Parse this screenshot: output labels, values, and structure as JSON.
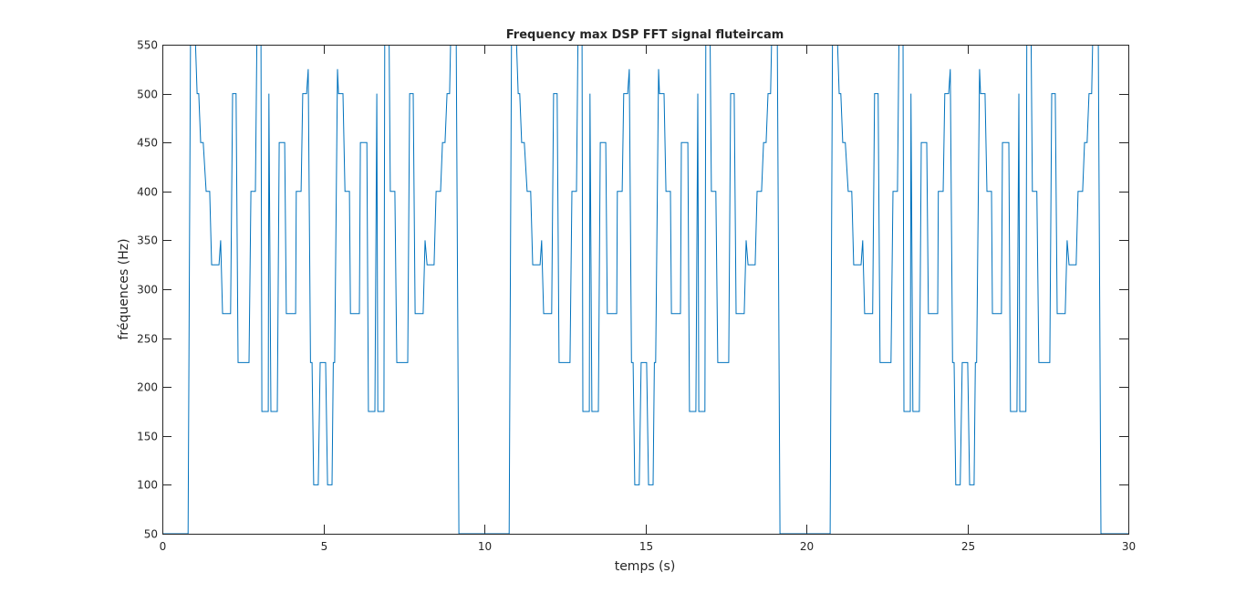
{
  "chart_data": {
    "type": "line",
    "title": "Frequency max DSP FFT signal fluteircam",
    "xlabel": "temps (s)",
    "ylabel": "fréquences (Hz)",
    "xlim": [
      0,
      30
    ],
    "ylim": [
      50,
      550
    ],
    "xticks": [
      0,
      5,
      10,
      15,
      20,
      25,
      30
    ],
    "yticks": [
      50,
      100,
      150,
      200,
      250,
      300,
      350,
      400,
      450,
      500,
      550
    ],
    "grid": false,
    "color": "#0072BD",
    "series": [
      {
        "points": [
          [
            0,
            50
          ],
          [
            0.8,
            50
          ],
          [
            0.88,
            600
          ],
          [
            0.98,
            600
          ],
          [
            1.08,
            500
          ],
          [
            1.13,
            500
          ],
          [
            1.19,
            450
          ],
          [
            1.27,
            450
          ],
          [
            1.36,
            400
          ],
          [
            1.47,
            400
          ],
          [
            1.53,
            325
          ],
          [
            1.76,
            325
          ],
          [
            1.81,
            350
          ],
          [
            1.87,
            275
          ],
          [
            2.12,
            275
          ],
          [
            2.18,
            500
          ],
          [
            2.29,
            500
          ],
          [
            2.35,
            225
          ],
          [
            2.69,
            225
          ],
          [
            2.75,
            400
          ],
          [
            2.89,
            400
          ],
          [
            2.95,
            600
          ],
          [
            3.06,
            600
          ],
          [
            3.09,
            175
          ],
          [
            3.29,
            175
          ],
          [
            3.31,
            500
          ],
          [
            3.37,
            175
          ],
          [
            3.57,
            175
          ],
          [
            3.63,
            450
          ],
          [
            3.8,
            450
          ],
          [
            3.85,
            275
          ],
          [
            4.14,
            275
          ],
          [
            4.16,
            400
          ],
          [
            4.31,
            400
          ],
          [
            4.36,
            500
          ],
          [
            4.48,
            500
          ],
          [
            4.53,
            525
          ],
          [
            4.6,
            225
          ],
          [
            4.65,
            225
          ],
          [
            4.7,
            100
          ],
          [
            4.84,
            100
          ],
          [
            4.9,
            225
          ],
          [
            5.07,
            225
          ],
          [
            5.13,
            100
          ],
          [
            5.27,
            100
          ],
          [
            5.31,
            225
          ],
          [
            5.35,
            225
          ],
          [
            5.44,
            525
          ],
          [
            5.47,
            500
          ],
          [
            5.61,
            500
          ],
          [
            5.67,
            400
          ],
          [
            5.81,
            400
          ],
          [
            5.84,
            275
          ],
          [
            6.12,
            275
          ],
          [
            6.15,
            450
          ],
          [
            6.35,
            450
          ],
          [
            6.4,
            175
          ],
          [
            6.6,
            175
          ],
          [
            6.66,
            500
          ],
          [
            6.69,
            175
          ],
          [
            6.88,
            175
          ],
          [
            6.91,
            600
          ],
          [
            7.03,
            600
          ],
          [
            7.08,
            400
          ],
          [
            7.22,
            400
          ],
          [
            7.28,
            225
          ],
          [
            7.62,
            225
          ],
          [
            7.68,
            500
          ],
          [
            7.79,
            500
          ],
          [
            7.85,
            275
          ],
          [
            8.1,
            275
          ],
          [
            8.16,
            350
          ],
          [
            8.22,
            325
          ],
          [
            8.44,
            325
          ],
          [
            8.5,
            400
          ],
          [
            8.64,
            400
          ],
          [
            8.7,
            450
          ],
          [
            8.78,
            450
          ],
          [
            8.84,
            500
          ],
          [
            8.92,
            500
          ],
          [
            8.98,
            600
          ],
          [
            9.12,
            600
          ],
          [
            9.21,
            50
          ],
          [
            10.77,
            50
          ],
          [
            10.85,
            600
          ],
          [
            10.95,
            600
          ],
          [
            11.05,
            500
          ],
          [
            11.1,
            500
          ],
          [
            11.16,
            450
          ],
          [
            11.24,
            450
          ],
          [
            11.33,
            400
          ],
          [
            11.44,
            400
          ],
          [
            11.5,
            325
          ],
          [
            11.73,
            325
          ],
          [
            11.78,
            350
          ],
          [
            11.84,
            275
          ],
          [
            12.09,
            275
          ],
          [
            12.15,
            500
          ],
          [
            12.26,
            500
          ],
          [
            12.32,
            225
          ],
          [
            12.66,
            225
          ],
          [
            12.72,
            400
          ],
          [
            12.86,
            400
          ],
          [
            12.92,
            600
          ],
          [
            13.03,
            600
          ],
          [
            13.06,
            175
          ],
          [
            13.26,
            175
          ],
          [
            13.28,
            500
          ],
          [
            13.34,
            175
          ],
          [
            13.54,
            175
          ],
          [
            13.6,
            450
          ],
          [
            13.77,
            450
          ],
          [
            13.82,
            275
          ],
          [
            14.11,
            275
          ],
          [
            14.13,
            400
          ],
          [
            14.28,
            400
          ],
          [
            14.33,
            500
          ],
          [
            14.45,
            500
          ],
          [
            14.5,
            525
          ],
          [
            14.57,
            225
          ],
          [
            14.62,
            225
          ],
          [
            14.67,
            100
          ],
          [
            14.81,
            100
          ],
          [
            14.87,
            225
          ],
          [
            15.04,
            225
          ],
          [
            15.1,
            100
          ],
          [
            15.24,
            100
          ],
          [
            15.28,
            225
          ],
          [
            15.32,
            225
          ],
          [
            15.41,
            525
          ],
          [
            15.44,
            500
          ],
          [
            15.58,
            500
          ],
          [
            15.64,
            400
          ],
          [
            15.78,
            400
          ],
          [
            15.81,
            275
          ],
          [
            16.09,
            275
          ],
          [
            16.12,
            450
          ],
          [
            16.32,
            450
          ],
          [
            16.37,
            175
          ],
          [
            16.57,
            175
          ],
          [
            16.63,
            500
          ],
          [
            16.66,
            175
          ],
          [
            16.85,
            175
          ],
          [
            16.88,
            600
          ],
          [
            17.0,
            600
          ],
          [
            17.05,
            400
          ],
          [
            17.19,
            400
          ],
          [
            17.25,
            225
          ],
          [
            17.59,
            225
          ],
          [
            17.65,
            500
          ],
          [
            17.76,
            500
          ],
          [
            17.82,
            275
          ],
          [
            18.07,
            275
          ],
          [
            18.13,
            350
          ],
          [
            18.19,
            325
          ],
          [
            18.41,
            325
          ],
          [
            18.47,
            400
          ],
          [
            18.61,
            400
          ],
          [
            18.67,
            450
          ],
          [
            18.75,
            450
          ],
          [
            18.81,
            500
          ],
          [
            18.89,
            500
          ],
          [
            18.95,
            600
          ],
          [
            19.09,
            600
          ],
          [
            19.18,
            50
          ],
          [
            20.74,
            50
          ],
          [
            20.82,
            600
          ],
          [
            20.92,
            600
          ],
          [
            21.02,
            500
          ],
          [
            21.07,
            500
          ],
          [
            21.13,
            450
          ],
          [
            21.21,
            450
          ],
          [
            21.3,
            400
          ],
          [
            21.41,
            400
          ],
          [
            21.47,
            325
          ],
          [
            21.7,
            325
          ],
          [
            21.75,
            350
          ],
          [
            21.81,
            275
          ],
          [
            22.06,
            275
          ],
          [
            22.12,
            500
          ],
          [
            22.23,
            500
          ],
          [
            22.29,
            225
          ],
          [
            22.63,
            225
          ],
          [
            22.69,
            400
          ],
          [
            22.83,
            400
          ],
          [
            22.89,
            600
          ],
          [
            23.0,
            600
          ],
          [
            23.03,
            175
          ],
          [
            23.23,
            175
          ],
          [
            23.25,
            500
          ],
          [
            23.31,
            175
          ],
          [
            23.51,
            175
          ],
          [
            23.57,
            450
          ],
          [
            23.74,
            450
          ],
          [
            23.79,
            275
          ],
          [
            24.08,
            275
          ],
          [
            24.1,
            400
          ],
          [
            24.25,
            400
          ],
          [
            24.3,
            500
          ],
          [
            24.42,
            500
          ],
          [
            24.47,
            525
          ],
          [
            24.54,
            225
          ],
          [
            24.59,
            225
          ],
          [
            24.64,
            100
          ],
          [
            24.78,
            100
          ],
          [
            24.84,
            225
          ],
          [
            25.01,
            225
          ],
          [
            25.07,
            100
          ],
          [
            25.21,
            100
          ],
          [
            25.25,
            225
          ],
          [
            25.29,
            225
          ],
          [
            25.38,
            525
          ],
          [
            25.41,
            500
          ],
          [
            25.55,
            500
          ],
          [
            25.61,
            400
          ],
          [
            25.75,
            400
          ],
          [
            25.78,
            275
          ],
          [
            26.06,
            275
          ],
          [
            26.09,
            450
          ],
          [
            26.29,
            450
          ],
          [
            26.34,
            175
          ],
          [
            26.54,
            175
          ],
          [
            26.6,
            500
          ],
          [
            26.63,
            175
          ],
          [
            26.82,
            175
          ],
          [
            26.85,
            600
          ],
          [
            26.97,
            600
          ],
          [
            27.02,
            400
          ],
          [
            27.16,
            400
          ],
          [
            27.22,
            225
          ],
          [
            27.56,
            225
          ],
          [
            27.62,
            500
          ],
          [
            27.73,
            500
          ],
          [
            27.79,
            275
          ],
          [
            28.04,
            275
          ],
          [
            28.1,
            350
          ],
          [
            28.16,
            325
          ],
          [
            28.38,
            325
          ],
          [
            28.44,
            400
          ],
          [
            28.58,
            400
          ],
          [
            28.64,
            450
          ],
          [
            28.72,
            450
          ],
          [
            28.78,
            500
          ],
          [
            28.86,
            500
          ],
          [
            28.92,
            600
          ],
          [
            29.06,
            600
          ],
          [
            29.15,
            50
          ],
          [
            30,
            50
          ]
        ]
      }
    ]
  }
}
